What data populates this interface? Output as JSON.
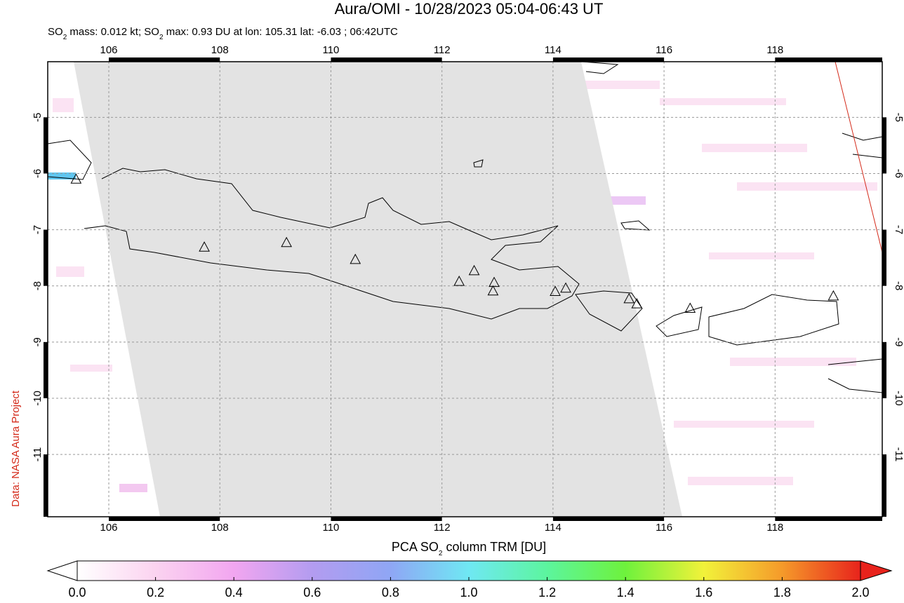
{
  "chart_data": {
    "type": "map",
    "title": "Aura/OMI - 10/28/2023 05:04-06:43 UT",
    "subtitle": [
      "SO",
      "2",
      " mass: 0.012 kt; SO",
      "2",
      " max: 0.93 DU at lon: 105.31 lat: -6.03 ; 06:42UTC"
    ],
    "side_label": "Data: NASA Aura Project",
    "xlim": [
      104.9,
      119.93
    ],
    "ylim": [
      -12.11,
      -4.01
    ],
    "xticks": [
      106,
      108,
      110,
      112,
      114,
      116,
      118
    ],
    "yticks": [
      -5,
      -6,
      -7,
      -8,
      -9,
      -10,
      -11
    ],
    "grid": true,
    "volcanoes": {
      "lon": [
        105.41,
        107.72,
        109.2,
        110.44,
        112.31,
        112.58,
        112.94,
        112.92,
        114.04,
        114.23,
        115.37,
        115.51,
        116.47,
        119.05
      ],
      "lat": [
        -6.11,
        -7.32,
        -7.24,
        -7.54,
        -7.93,
        -7.74,
        -7.95,
        -8.1,
        -8.11,
        -8.05,
        -8.24,
        -8.33,
        -8.41,
        -8.19
      ]
    },
    "colorbar": {
      "label": [
        "PCA SO",
        "2",
        " column TRM [DU]"
      ],
      "clim": [
        0,
        2
      ],
      "colors": [
        "#ffffff",
        "#fbd3f0",
        "#f2a6f0",
        "#b39cf0",
        "#8fa6f5",
        "#6fe8f3",
        "#5cf59e",
        "#6ef23c",
        "#f2f23a",
        "#f59a2a",
        "#e8231c"
      ],
      "ticks": [
        {
          "value": 0,
          "label": "0.0"
        },
        {
          "value": 0.2,
          "label": "0.2"
        },
        {
          "value": 0.4,
          "label": "0.4"
        },
        {
          "value": 0.6,
          "label": "0.6"
        },
        {
          "value": 0.8,
          "label": "0.8"
        },
        {
          "value": 1,
          "label": "1.0"
        },
        {
          "value": 1.2,
          "label": "1.2"
        },
        {
          "value": 1.4,
          "label": "1.4"
        },
        {
          "value": 1.6,
          "label": "1.6"
        },
        {
          "value": 1.8,
          "label": "1.8"
        },
        {
          "value": 2,
          "label": "2.0"
        }
      ]
    }
  }
}
